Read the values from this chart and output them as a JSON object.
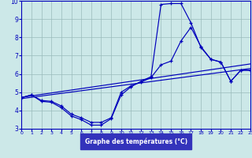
{
  "xlabel": "Graphe des températures (°C)",
  "background_color": "#cce8e8",
  "grid_color": "#99bbbb",
  "line_color": "#0000bb",
  "xlabel_bg": "#3333bb",
  "xlabel_fg": "#ffffff",
  "xlim": [
    0,
    23
  ],
  "ylim": [
    3,
    10
  ],
  "yticks": [
    3,
    4,
    5,
    6,
    7,
    8,
    9,
    10
  ],
  "xticks": [
    0,
    1,
    2,
    3,
    4,
    5,
    6,
    7,
    8,
    9,
    10,
    11,
    12,
    13,
    14,
    15,
    16,
    17,
    18,
    19,
    20,
    21,
    22,
    23
  ],
  "line_max_x": [
    0,
    1,
    2,
    3,
    4,
    5,
    6,
    7,
    8,
    9,
    10,
    11,
    12,
    13,
    14,
    15,
    16,
    17,
    18,
    19,
    20,
    21,
    22,
    23
  ],
  "line_max_y": [
    4.7,
    4.85,
    4.5,
    4.45,
    4.15,
    3.7,
    3.5,
    3.2,
    3.2,
    3.55,
    4.85,
    5.3,
    5.6,
    5.85,
    9.8,
    9.85,
    9.85,
    8.8,
    7.45,
    6.8,
    6.65,
    5.6,
    6.2,
    6.2
  ],
  "line_mean_x": [
    0,
    1,
    2,
    3,
    4,
    5,
    6,
    7,
    8,
    9,
    10,
    11,
    12,
    13,
    14,
    15,
    16,
    17,
    18,
    19,
    20,
    21,
    22,
    23
  ],
  "line_mean_y": [
    4.7,
    4.85,
    4.55,
    4.5,
    4.25,
    3.8,
    3.6,
    3.35,
    3.35,
    3.6,
    5.0,
    5.35,
    5.55,
    5.8,
    6.5,
    6.7,
    7.8,
    8.55,
    7.5,
    6.8,
    6.65,
    5.6,
    6.2,
    6.2
  ],
  "line_trend_x": [
    0,
    23
  ],
  "line_trend_y": [
    4.72,
    6.55
  ],
  "line_trend2_x": [
    0,
    23
  ],
  "line_trend2_y": [
    4.65,
    6.3
  ]
}
